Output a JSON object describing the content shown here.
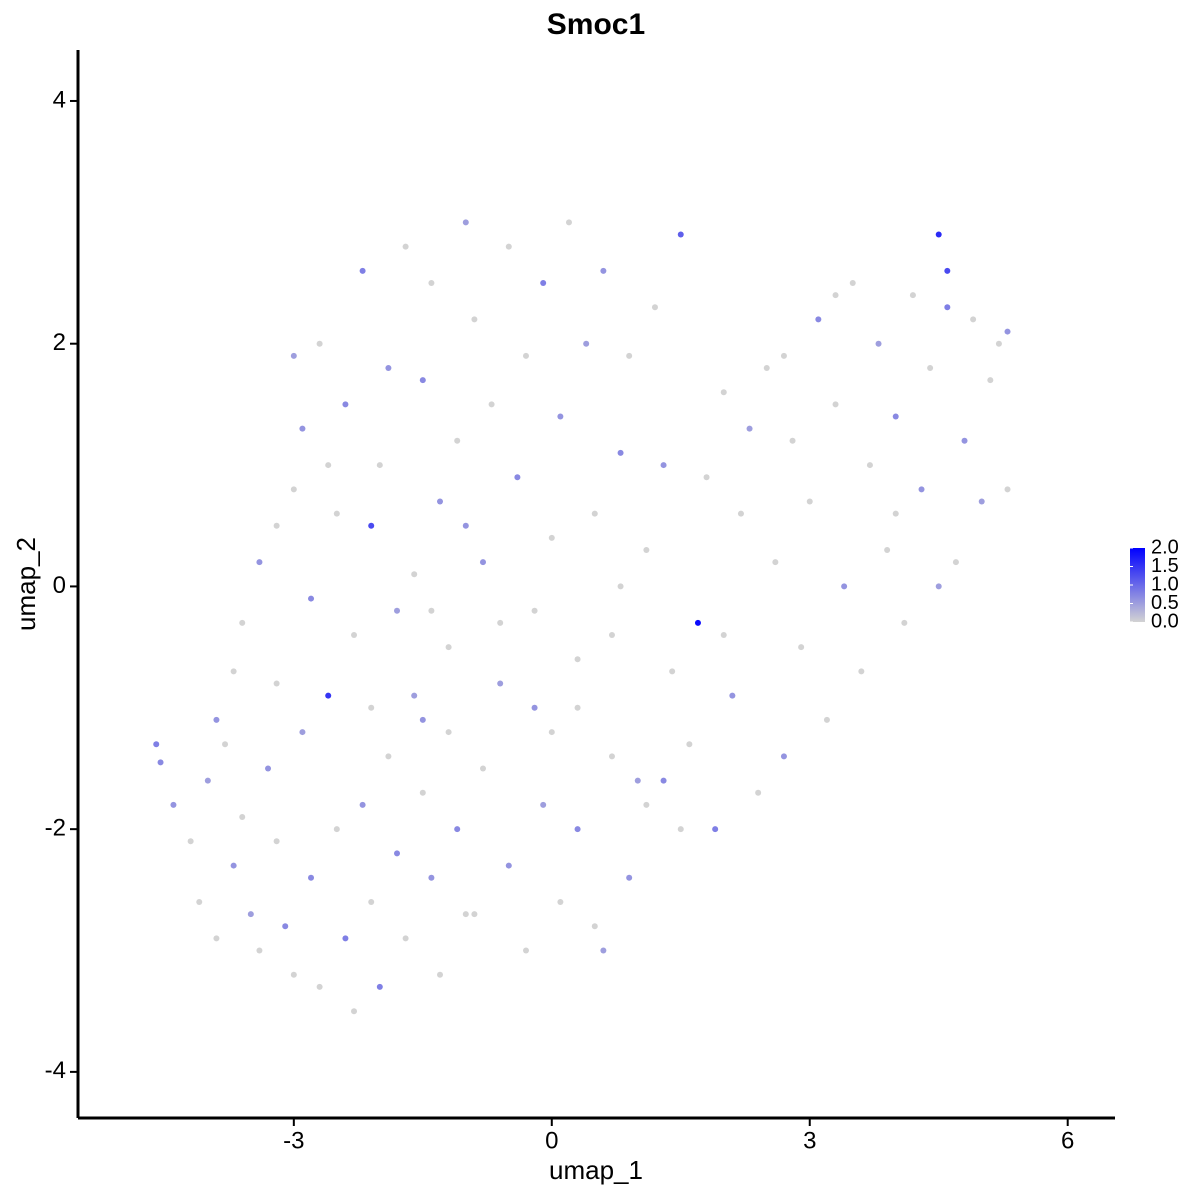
{
  "chart_data": {
    "type": "scatter",
    "title": "Smoc1",
    "x_label": "umap_1",
    "y_label": "umap_2",
    "xlim": [
      -5.51,
      6.55
    ],
    "ylim": [
      -4.38,
      4.42
    ],
    "xticks": [
      -3,
      0,
      3,
      6
    ],
    "yticks": [
      -4,
      -2,
      0,
      2,
      4
    ],
    "colorscale": [
      "#d3d3d3",
      "#0000ff"
    ],
    "color_range": [
      0,
      2
    ],
    "colorbar_ticks": [
      {
        "value": 0,
        "label": "0.0"
      },
      {
        "value": 0.5,
        "label": "0.5"
      },
      {
        "value": 1,
        "label": "1.0"
      },
      {
        "value": 1.5,
        "label": "1.5"
      },
      {
        "value": 2,
        "label": "2.0"
      }
    ],
    "x": [
      -4.6,
      -4.55,
      -4.4,
      -4.2,
      -4.0,
      -4.1,
      -3.9,
      -3.8,
      -3.7,
      -3.6,
      -3.5,
      -3.4,
      -3.3,
      -3.2,
      -3.1,
      -3.0,
      -2.9,
      -2.8,
      -2.7,
      -2.6,
      -2.5,
      -2.4,
      -2.3,
      -2.2,
      -2.1,
      -2.0,
      -1.9,
      -1.8,
      -1.7,
      -1.6,
      -1.5,
      -1.4,
      -1.3,
      -1.2,
      -1.1,
      -1.0,
      -3.6,
      -3.4,
      -3.2,
      -3.0,
      -2.9,
      -2.8,
      -3.0,
      -2.7,
      -2.5,
      -2.4,
      -2.3,
      -2.2,
      -2.1,
      -2.0,
      -1.9,
      -1.8,
      -1.7,
      -1.6,
      -1.5,
      -1.4,
      -1.3,
      -1.2,
      -1.1,
      -1.0,
      -0.9,
      -0.8,
      -0.7,
      -0.6,
      -0.5,
      -0.4,
      -0.3,
      -0.2,
      -0.1,
      0.0,
      0.1,
      0.2,
      0.3,
      0.4,
      0.5,
      0.6,
      0.7,
      0.8,
      0.9,
      1.0,
      1.1,
      1.2,
      1.3,
      1.5,
      1.4,
      1.6,
      1.7,
      1.8,
      1.9,
      2.0,
      2.1,
      2.2,
      2.3,
      2.4,
      2.5,
      2.6,
      2.7,
      2.8,
      2.9,
      3.0,
      3.1,
      3.2,
      3.3,
      3.4,
      3.5,
      3.6,
      3.7,
      3.8,
      3.9,
      4.0,
      4.1,
      4.2,
      4.3,
      4.4,
      4.5,
      4.6,
      4.7,
      4.8,
      4.9,
      5.0,
      5.1,
      5.2,
      5.3,
      4.6,
      5.3,
      3.3,
      2.7,
      -0.8,
      -0.5,
      -0.3,
      -0.1,
      0.1,
      0.3,
      0.5,
      0.7,
      0.9,
      1.1,
      0.6,
      0.0,
      -0.6,
      -0.2,
      0.3,
      1.3,
      1.5,
      -0.9,
      -1.5,
      -2.1,
      -3.7,
      -3.9,
      -1.0,
      -1.4,
      -2.6,
      -3.2,
      0.8,
      2.0,
      4.0,
      4.5
    ],
    "values": [
      -1.3,
      -1.45,
      -1.8,
      -2.1,
      -1.6,
      -2.6,
      -2.9,
      -1.3,
      -2.3,
      -1.9,
      -2.7,
      -3.0,
      -1.5,
      -2.1,
      -2.8,
      -3.2,
      -1.2,
      -2.4,
      -3.3,
      -0.9,
      -2.0,
      -2.9,
      -3.5,
      -1.8,
      -2.6,
      -3.3,
      -1.4,
      -2.2,
      -2.9,
      -0.9,
      -1.7,
      -2.4,
      -3.2,
      -1.2,
      -2.0,
      -2.7,
      -0.3,
      0.2,
      -0.8,
      0.8,
      1.3,
      -0.1,
      1.9,
      2.0,
      0.6,
      1.5,
      -0.4,
      2.6,
      0.5,
      1.0,
      1.8,
      -0.2,
      2.8,
      0.1,
      1.7,
      2.5,
      0.7,
      -0.5,
      1.2,
      3.0,
      2.2,
      0.2,
      1.5,
      -0.8,
      2.8,
      0.9,
      1.9,
      -0.2,
      2.5,
      0.4,
      1.4,
      3.0,
      -1.0,
      2.0,
      0.6,
      2.6,
      -0.4,
      1.1,
      1.9,
      -1.6,
      0.3,
      2.3,
      1.0,
      2.9,
      -0.7,
      -1.3,
      -0.3,
      0.9,
      -2.0,
      1.6,
      -0.9,
      0.6,
      1.3,
      -1.7,
      1.8,
      0.2,
      -1.4,
      1.2,
      -0.5,
      0.7,
      2.2,
      -1.1,
      1.5,
      0.0,
      2.5,
      -0.7,
      1.0,
      2.0,
      0.3,
      1.4,
      -0.3,
      2.4,
      0.8,
      1.8,
      2.9,
      2.6,
      0.2,
      1.2,
      2.2,
      0.7,
      1.7,
      2.0,
      0.8,
      2.3,
      2.1,
      2.4,
      1.9,
      -1.5,
      -2.3,
      -3.0,
      -1.8,
      -2.6,
      -2.0,
      -2.8,
      -1.4,
      -2.4,
      -1.8,
      -3.0,
      -1.2,
      -0.3,
      -1.0,
      -0.6,
      -1.6,
      -2.0,
      -2.7,
      -1.1,
      -1.0,
      -0.7,
      -1.1,
      0.5,
      -0.2,
      1.0,
      0.5,
      0.0,
      -0.4,
      0.6,
      0.0
    ],
    "color_values": [
      0.8,
      0.7,
      0.6,
      0,
      0.5,
      0,
      0,
      0,
      0.6,
      0,
      0.5,
      0,
      0.6,
      0,
      0.7,
      0,
      0.5,
      0.7,
      0,
      1.5,
      0,
      0.8,
      0,
      0.6,
      0,
      0.8,
      0,
      0.7,
      0,
      0.5,
      0,
      0.6,
      0,
      0,
      0.7,
      0,
      0,
      0.6,
      0,
      0,
      0.6,
      0.7,
      0.5,
      0,
      0,
      0.7,
      0,
      0.8,
      1.3,
      0,
      0.6,
      0.5,
      0,
      0,
      0.7,
      0,
      0.6,
      0,
      0,
      0.5,
      0,
      0.6,
      0,
      0.5,
      0,
      0.7,
      0,
      0,
      0.8,
      0,
      0.6,
      0,
      0,
      0.5,
      0,
      0.6,
      0,
      0.7,
      0,
      0.5,
      0,
      0,
      0.6,
      1.1,
      0,
      0,
      1.9,
      0,
      0.8,
      0,
      0.6,
      0,
      0.5,
      0,
      0,
      0,
      0.6,
      0,
      0,
      0,
      0.7,
      0,
      0,
      0.6,
      0,
      0,
      0,
      0.5,
      0,
      0.7,
      0,
      0,
      0.6,
      0,
      1.6,
      1.3,
      0,
      0.6,
      0,
      0.5,
      0,
      0,
      0,
      0.8,
      0.6,
      0,
      0,
      0,
      0.6,
      0,
      0.5,
      0,
      0.7,
      0,
      0,
      0.6,
      0,
      0.5,
      0,
      0,
      0.6,
      0,
      0.7,
      0,
      0,
      0.6,
      0,
      0,
      0.6,
      0.6,
      0,
      0,
      0,
      0,
      0,
      0,
      0.5
    ]
  }
}
